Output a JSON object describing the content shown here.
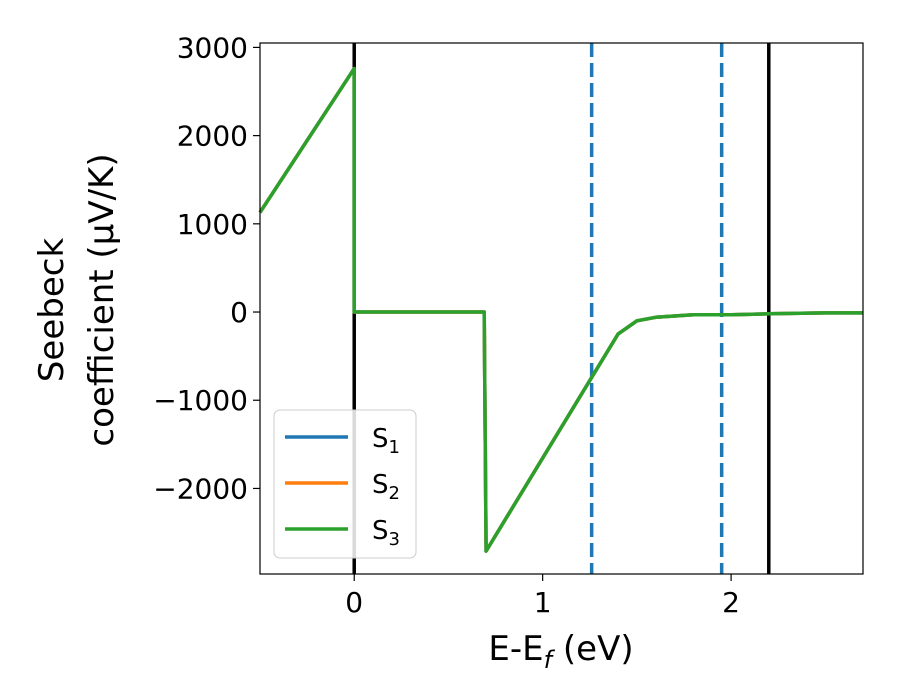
{
  "chart_data": {
    "type": "line",
    "xlabel": "E-E",
    "xlabel_sub": "f",
    "xlabel_unit": " (eV)",
    "ylabel_line1": "Seebeck",
    "ylabel_line2": "coefficient  (μV/K)",
    "xlim": [
      -0.5,
      2.7
    ],
    "ylim": [
      -2970,
      3050
    ],
    "x_ticks": [
      0,
      1,
      2
    ],
    "x_tick_labels": [
      "0",
      "1",
      "2"
    ],
    "y_ticks": [
      3000,
      2000,
      1000,
      0,
      -1000,
      -2000
    ],
    "y_tick_labels": [
      "3000",
      "2000",
      "1000",
      "0",
      "−1000",
      "−2000"
    ],
    "grid": false,
    "legend_position": "lower-left",
    "vertical_lines": [
      {
        "x": 0,
        "style": "solid",
        "color": "#000000"
      },
      {
        "x": 2.2,
        "style": "solid",
        "color": "#000000"
      },
      {
        "x": 1.26,
        "style": "dashed",
        "color": "#1f77b4"
      },
      {
        "x": 1.95,
        "style": "dashed",
        "color": "#1f77b4"
      }
    ],
    "series": [
      {
        "name": "S",
        "sub": "1",
        "color": "#1f77b4",
        "x": [
          -0.5,
          0,
          0,
          0.69,
          0.7,
          1.4,
          1.5,
          1.6,
          1.8,
          2.0,
          2.2,
          2.5,
          2.7
        ],
        "y": [
          1130,
          2760,
          0,
          0,
          -2710,
          -250,
          -100,
          -60,
          -30,
          -30,
          -20,
          -10,
          -10
        ]
      },
      {
        "name": "S",
        "sub": "2",
        "color": "#ff7f0e",
        "x": [
          -0.5,
          0,
          0,
          0.69,
          0.7,
          1.4,
          1.5,
          1.6,
          1.8,
          2.0,
          2.2,
          2.5,
          2.7
        ],
        "y": [
          1130,
          2760,
          0,
          0,
          -2710,
          -250,
          -100,
          -60,
          -30,
          -30,
          -20,
          -10,
          -10
        ]
      },
      {
        "name": "S",
        "sub": "3",
        "color": "#2ca02c",
        "x": [
          -0.5,
          0,
          0,
          0.69,
          0.7,
          1.4,
          1.5,
          1.6,
          1.8,
          2.0,
          2.2,
          2.5,
          2.7
        ],
        "y": [
          1130,
          2760,
          0,
          0,
          -2710,
          -250,
          -100,
          -60,
          -30,
          -30,
          -20,
          -10,
          -10
        ]
      }
    ]
  }
}
